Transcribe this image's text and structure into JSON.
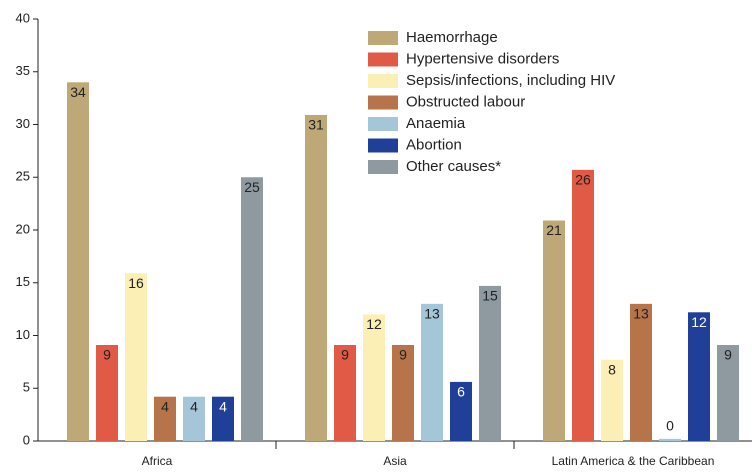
{
  "chart_data": {
    "type": "bar",
    "categories": [
      "Africa",
      "Asia",
      "Latin America & the Caribbean"
    ],
    "series": [
      {
        "name": "Haemorrhage",
        "color": "#bfa878",
        "values": [
          34.0,
          30.9,
          20.9
        ],
        "value_labels": [
          "34",
          "31",
          "21"
        ]
      },
      {
        "name": "Hypertensive disorders",
        "color": "#e05a45",
        "values": [
          9.1,
          9.1,
          25.7
        ],
        "value_labels": [
          "9",
          "9",
          "26"
        ]
      },
      {
        "name": "Sepsis/infections, including HIV",
        "color": "#fcefb5",
        "values": [
          15.9,
          12.0,
          7.7
        ],
        "value_labels": [
          "16",
          "12",
          "8"
        ]
      },
      {
        "name": "Obstructed labour",
        "color": "#b7744a",
        "values": [
          4.2,
          9.1,
          13.0
        ],
        "value_labels": [
          "4",
          "9",
          "13"
        ]
      },
      {
        "name": "Anaemia",
        "color": "#a5c6d8",
        "values": [
          4.2,
          13.0,
          0.2
        ],
        "value_labels": [
          "4",
          "13",
          "0"
        ]
      },
      {
        "name": "Abortion",
        "color": "#1f3f99",
        "values": [
          4.2,
          5.6,
          12.2
        ],
        "value_labels": [
          "4",
          "6",
          "12"
        ]
      },
      {
        "name": "Other causes*",
        "color": "#8f9aa0",
        "values": [
          25.0,
          14.7,
          9.1
        ],
        "value_labels": [
          "25",
          "15",
          "9"
        ]
      }
    ],
    "ylim": [
      0,
      40
    ],
    "yticks": [
      0,
      5,
      10,
      15,
      20,
      25,
      30,
      35,
      40
    ],
    "grid": false,
    "legend": "top"
  }
}
